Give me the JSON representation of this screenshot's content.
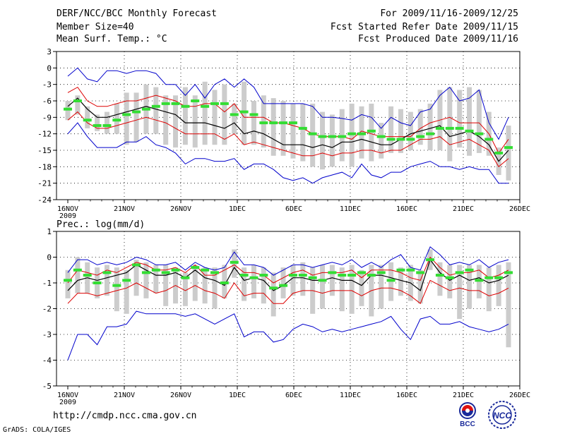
{
  "header": {
    "title": "DERF/NCC/BCC Monthly Forecast",
    "member_size": "Member Size=40",
    "variable": "Mean Surf. Temp.: °C",
    "forecast_period": "For 2009/11/16-2009/12/25",
    "started_refer_date": "Fcst Started Refer Date 2009/11/15",
    "produced_date": "Fcst Produced Date 2009/11/16"
  },
  "footer": {
    "url": "http://cmdp.ncc.cma.gov.cn",
    "credit": "GrADS: COLA/IGES",
    "logo_left_text": "BCC",
    "logo_right_text": "NCC"
  },
  "colors": {
    "bar": "#cccccc",
    "mean": "#33dd33",
    "median": "#000000",
    "quartile": "#dd0000",
    "extreme": "#0000cc"
  },
  "chart_data": [
    {
      "type": "line",
      "title": "Mean Surf. Temp.: °C",
      "x_tick_labels": [
        "16NOV",
        "21NOV",
        "26NOV",
        "1DEC",
        "6DEC",
        "11DEC",
        "16DEC",
        "21DEC",
        "26DEC"
      ],
      "x_year_label": "2009",
      "ylim": [
        -24,
        3
      ],
      "y_ticks": [
        3,
        0,
        -3,
        -6,
        -9,
        -12,
        -15,
        -18,
        -21,
        -24
      ],
      "grid": true,
      "series": [
        {
          "name": "max",
          "values": [
            -1.5,
            0,
            -2,
            -2.5,
            -0.5,
            -0.5,
            -1,
            -0.5,
            -0.5,
            -1,
            -3,
            -3,
            -5,
            -3,
            -5.5,
            -3,
            -2,
            -3.5,
            -2,
            -3.5,
            -6.5,
            -6.5,
            -6.5,
            -6.5,
            -6.5,
            -7,
            -9,
            -9,
            -9.2,
            -9.5,
            -8.5,
            -9,
            -11,
            -9,
            -10,
            -10.5,
            -8,
            -7.5,
            -5,
            -3.5,
            -6,
            -5.5,
            -4,
            -10,
            -13,
            -9
          ]
        },
        {
          "name": "upper",
          "values": [
            -4.5,
            -3.5,
            -6,
            -7,
            -7,
            -6.5,
            -6,
            -6,
            -5.5,
            -5,
            -5.5,
            -6,
            -7,
            -7,
            -6.5,
            -6.5,
            -8,
            -6.5,
            -9,
            -9,
            -9,
            -10,
            -10,
            -10.5,
            -11,
            -12,
            -12.5,
            -12.5,
            -12.5,
            -13,
            -11.5,
            -12,
            -12.5,
            -12.5,
            -12.5,
            -12.5,
            -11,
            -10,
            -9.5,
            -9,
            -10,
            -10,
            -10,
            -12,
            -15.5,
            -13
          ]
        },
        {
          "name": "median",
          "values": [
            -7,
            -5.5,
            -7.5,
            -9,
            -9,
            -8.5,
            -8,
            -7.5,
            -7,
            -7.5,
            -8,
            -8.5,
            -10,
            -10,
            -10,
            -10.5,
            -11,
            -10,
            -12,
            -11.5,
            -12,
            -13,
            -14,
            -14,
            -14,
            -14.5,
            -14,
            -14.5,
            -13.5,
            -13.5,
            -13,
            -13.5,
            -14,
            -14,
            -13,
            -12,
            -11.5,
            -11,
            -10.5,
            -12.5,
            -12,
            -11.5,
            -12.5,
            -14,
            -17,
            -15
          ]
        },
        {
          "name": "lower",
          "values": [
            -9.5,
            -8,
            -10,
            -11,
            -11,
            -10.5,
            -10,
            -9.5,
            -9,
            -9.5,
            -10,
            -11,
            -12,
            -12,
            -12,
            -12,
            -13,
            -12,
            -14,
            -13.5,
            -14,
            -14.5,
            -15,
            -15.5,
            -16,
            -16,
            -15.5,
            -16,
            -15.5,
            -15.5,
            -15,
            -15,
            -15.5,
            -15,
            -15,
            -14,
            -13,
            -13,
            -12.5,
            -14,
            -13.5,
            -13,
            -14,
            -15,
            -18,
            -16.5
          ]
        },
        {
          "name": "min",
          "values": [
            -12,
            -10,
            -12.5,
            -14.5,
            -14.5,
            -14.5,
            -13.5,
            -13.5,
            -12.5,
            -14,
            -14.5,
            -15.5,
            -17.5,
            -16.5,
            -16.5,
            -17,
            -17,
            -16.5,
            -18.5,
            -17.5,
            -17.5,
            -18.5,
            -20,
            -20.5,
            -20,
            -21,
            -20,
            -19.5,
            -19,
            -20,
            -17.5,
            -19.5,
            -20,
            -19,
            -19,
            -18,
            -17.5,
            -17,
            -18,
            -18,
            -18.5,
            -18,
            -18.5,
            -18.5,
            -21,
            -21
          ]
        },
        {
          "name": "ensemble_mean",
          "values": [
            -7.5,
            -6,
            -9.5,
            -10.5,
            -10.5,
            -9.5,
            -8.5,
            -8,
            -7.5,
            -7,
            -6.5,
            -6.5,
            -7,
            -6,
            -7,
            -6.5,
            -6.5,
            -8.5,
            -8,
            -8.5,
            -10,
            -10,
            -10,
            -10,
            -11,
            -12,
            -12.5,
            -12.5,
            -12.5,
            -12,
            -12,
            -11.5,
            -12.5,
            -13,
            -13,
            -13,
            -12.5,
            -12,
            -11,
            -11,
            -11,
            -11.5,
            -12,
            -13,
            -15.5,
            -14.5
          ]
        },
        {
          "name": "bar_top",
          "values": [
            -6,
            -5,
            -7,
            -8.5,
            -8,
            -6.5,
            -4.5,
            -4.5,
            -3,
            -3.5,
            -5,
            -5,
            -3.5,
            -5,
            -2.5,
            -4,
            -3,
            -6.5,
            -2.5,
            -6,
            -5,
            -5.5,
            -6,
            -6.5,
            -6.5,
            -6.5,
            -8,
            -8.5,
            -7.5,
            -6.5,
            -7,
            -6.5,
            -10,
            -7,
            -7.5,
            -8,
            -7.5,
            -6.5,
            -4,
            -3.5,
            -4,
            -3.5,
            -4,
            -8,
            -14.5,
            -10.5
          ]
        },
        {
          "name": "bar_bottom",
          "values": [
            -9.5,
            -8.5,
            -11,
            -11.5,
            -12,
            -12,
            -14,
            -13.5,
            -12,
            -12,
            -14,
            -14.5,
            -14,
            -14.5,
            -14,
            -14,
            -14,
            -12,
            -14,
            -14,
            -14.5,
            -16,
            -16,
            -16.5,
            -17,
            -18,
            -18.5,
            -18,
            -17,
            -18,
            -16.5,
            -17,
            -16.5,
            -15.5,
            -15.5,
            -15,
            -14,
            -15,
            -15,
            -17,
            -14.5,
            -16,
            -15.5,
            -16,
            -19.5,
            -20.5
          ]
        }
      ]
    },
    {
      "type": "line",
      "title": "Prec.: log(mm/d)",
      "x_tick_labels": [
        "16NOV",
        "21NOV",
        "26NOV",
        "1DEC",
        "6DEC",
        "11DEC",
        "16DEC",
        "21DEC",
        "26DEC"
      ],
      "x_year_label": "2009",
      "ylim": [
        -5,
        1
      ],
      "y_ticks": [
        1,
        0,
        -1,
        -2,
        -3,
        -4,
        -5
      ],
      "grid": true,
      "series": [
        {
          "name": "max",
          "values": [
            -0.6,
            -0.1,
            -0.1,
            -0.3,
            -0.2,
            -0.3,
            -0.2,
            0,
            -0.1,
            -0.3,
            -0.3,
            -0.2,
            -0.5,
            -0.2,
            -0.4,
            -0.5,
            -0.4,
            0.2,
            -0.3,
            -0.3,
            -0.4,
            -0.7,
            -0.5,
            -0.3,
            -0.3,
            -0.4,
            -0.3,
            -0.2,
            -0.3,
            -0.1,
            -0.4,
            -0.2,
            -0.4,
            -0.1,
            0.1,
            -0.4,
            -0.5,
            0.4,
            0.1,
            -0.3,
            -0.2,
            -0.3,
            -0.1,
            -0.4,
            -0.2,
            -0.1
          ]
        },
        {
          "name": "upper",
          "values": [
            -1,
            -0.5,
            -0.6,
            -0.7,
            -0.5,
            -0.6,
            -0.4,
            -0.2,
            -0.3,
            -0.5,
            -0.5,
            -0.4,
            -0.6,
            -0.3,
            -0.7,
            -0.7,
            -0.5,
            -0.3,
            -0.6,
            -0.6,
            -0.7,
            -1,
            -0.8,
            -0.6,
            -0.5,
            -0.7,
            -0.6,
            -0.6,
            -0.6,
            -0.5,
            -0.8,
            -0.5,
            -0.5,
            -0.5,
            -0.6,
            -0.8,
            -0.9,
            0,
            -0.4,
            -0.7,
            -0.6,
            -0.6,
            -0.5,
            -0.8,
            -0.7,
            -0.5
          ]
        },
        {
          "name": "median",
          "values": [
            -1.3,
            -0.9,
            -0.8,
            -0.9,
            -0.8,
            -0.7,
            -0.6,
            -0.3,
            -0.5,
            -0.7,
            -0.7,
            -0.6,
            -0.8,
            -0.5,
            -0.8,
            -0.9,
            -1.1,
            -0.4,
            -0.9,
            -0.8,
            -0.9,
            -1.3,
            -1.1,
            -0.8,
            -0.8,
            -0.9,
            -0.9,
            -0.8,
            -0.9,
            -0.9,
            -1.1,
            -0.7,
            -0.7,
            -0.8,
            -0.9,
            -1.0,
            -1.3,
            -0.1,
            -0.6,
            -0.9,
            -0.7,
            -0.9,
            -0.8,
            -1.0,
            -0.9,
            -0.7
          ]
        },
        {
          "name": "lower",
          "values": [
            -1.8,
            -1.4,
            -1.4,
            -1.5,
            -1.4,
            -1.3,
            -1.2,
            -1,
            -1.2,
            -1.4,
            -1.3,
            -1.1,
            -1.3,
            -1.1,
            -1.3,
            -1.4,
            -1.6,
            -1.0,
            -1.5,
            -1.4,
            -1.4,
            -1.8,
            -1.8,
            -1.4,
            -1.3,
            -1.3,
            -1.4,
            -1.3,
            -1.3,
            -1.3,
            -1.5,
            -1.3,
            -1.2,
            -1.2,
            -1.3,
            -1.5,
            -1.8,
            -0.9,
            -1.1,
            -1.3,
            -1.2,
            -1.3,
            -1.3,
            -1.5,
            -1.4,
            -1.2
          ]
        },
        {
          "name": "min",
          "values": [
            -4,
            -3,
            -3,
            -3.4,
            -2.7,
            -2.7,
            -2.6,
            -2.1,
            -2.2,
            -2.2,
            -2.2,
            -2.2,
            -2.3,
            -2.2,
            -2.4,
            -2.6,
            -2.4,
            -2.2,
            -3.1,
            -2.9,
            -2.9,
            -3.3,
            -3.2,
            -2.8,
            -2.6,
            -2.7,
            -2.9,
            -2.8,
            -2.9,
            -2.8,
            -2.7,
            -2.6,
            -2.5,
            -2.3,
            -2.8,
            -3.2,
            -2.4,
            -2.3,
            -2.6,
            -2.6,
            -2.5,
            -2.7,
            -2.8,
            -2.9,
            -2.8,
            -2.6
          ]
        },
        {
          "name": "ensemble_mean",
          "values": [
            -0.9,
            -0.5,
            -0.7,
            -1.0,
            -0.6,
            -1.1,
            -0.9,
            -0.3,
            -0.6,
            -0.5,
            -0.6,
            -0.5,
            -0.8,
            -0.4,
            -0.5,
            -0.6,
            -1.0,
            -0.2,
            -0.7,
            -0.8,
            -0.7,
            -1.2,
            -1.1,
            -0.7,
            -0.7,
            -0.8,
            -0.9,
            -0.6,
            -0.7,
            -0.7,
            -0.6,
            -0.7,
            -0.6,
            -0.9,
            -0.5,
            -0.5,
            -0.6,
            -0.1,
            -0.7,
            -0.8,
            -0.6,
            -0.5,
            -0.9,
            -0.8,
            -0.8,
            -0.6
          ]
        },
        {
          "name": "bar_top",
          "values": [
            -0.5,
            0,
            -0.2,
            -0.4,
            -0.3,
            -0.4,
            -0.5,
            -0.1,
            -0.2,
            -0.3,
            -0.3,
            -0.4,
            -0.6,
            -0.3,
            -0.4,
            -0.4,
            -0.3,
            0.3,
            -0.4,
            -0.3,
            -0.4,
            -0.6,
            -0.4,
            -0.3,
            -0.2,
            -0.4,
            -0.3,
            -0.3,
            -0.4,
            -0.3,
            -0.5,
            -0.3,
            -0.3,
            -0.2,
            -0.4,
            -0.3,
            -0.5,
            0.3,
            -0.2,
            -0.3,
            -0.3,
            -0.3,
            -0.3,
            -0.4,
            -0.3,
            -0.2
          ]
        },
        {
          "name": "bar_bottom",
          "values": [
            -1.6,
            -1.4,
            -1.4,
            -1.6,
            -1.5,
            -2.1,
            -2.2,
            -1.5,
            -1.6,
            -1.4,
            -1.9,
            -1.8,
            -1.9,
            -1.7,
            -1.8,
            -2.0,
            -1.6,
            -0.8,
            -1.7,
            -1.6,
            -1.8,
            -2.3,
            -1.6,
            -1.5,
            -1.5,
            -2.2,
            -2.0,
            -1.5,
            -2.1,
            -2.2,
            -1.9,
            -2.3,
            -2.0,
            -1.7,
            -1.5,
            -1.7,
            -1.8,
            -0.5,
            -1.5,
            -1.6,
            -2.4,
            -2.0,
            -1.6,
            -2.1,
            -1.9,
            -3.5
          ]
        }
      ]
    }
  ]
}
